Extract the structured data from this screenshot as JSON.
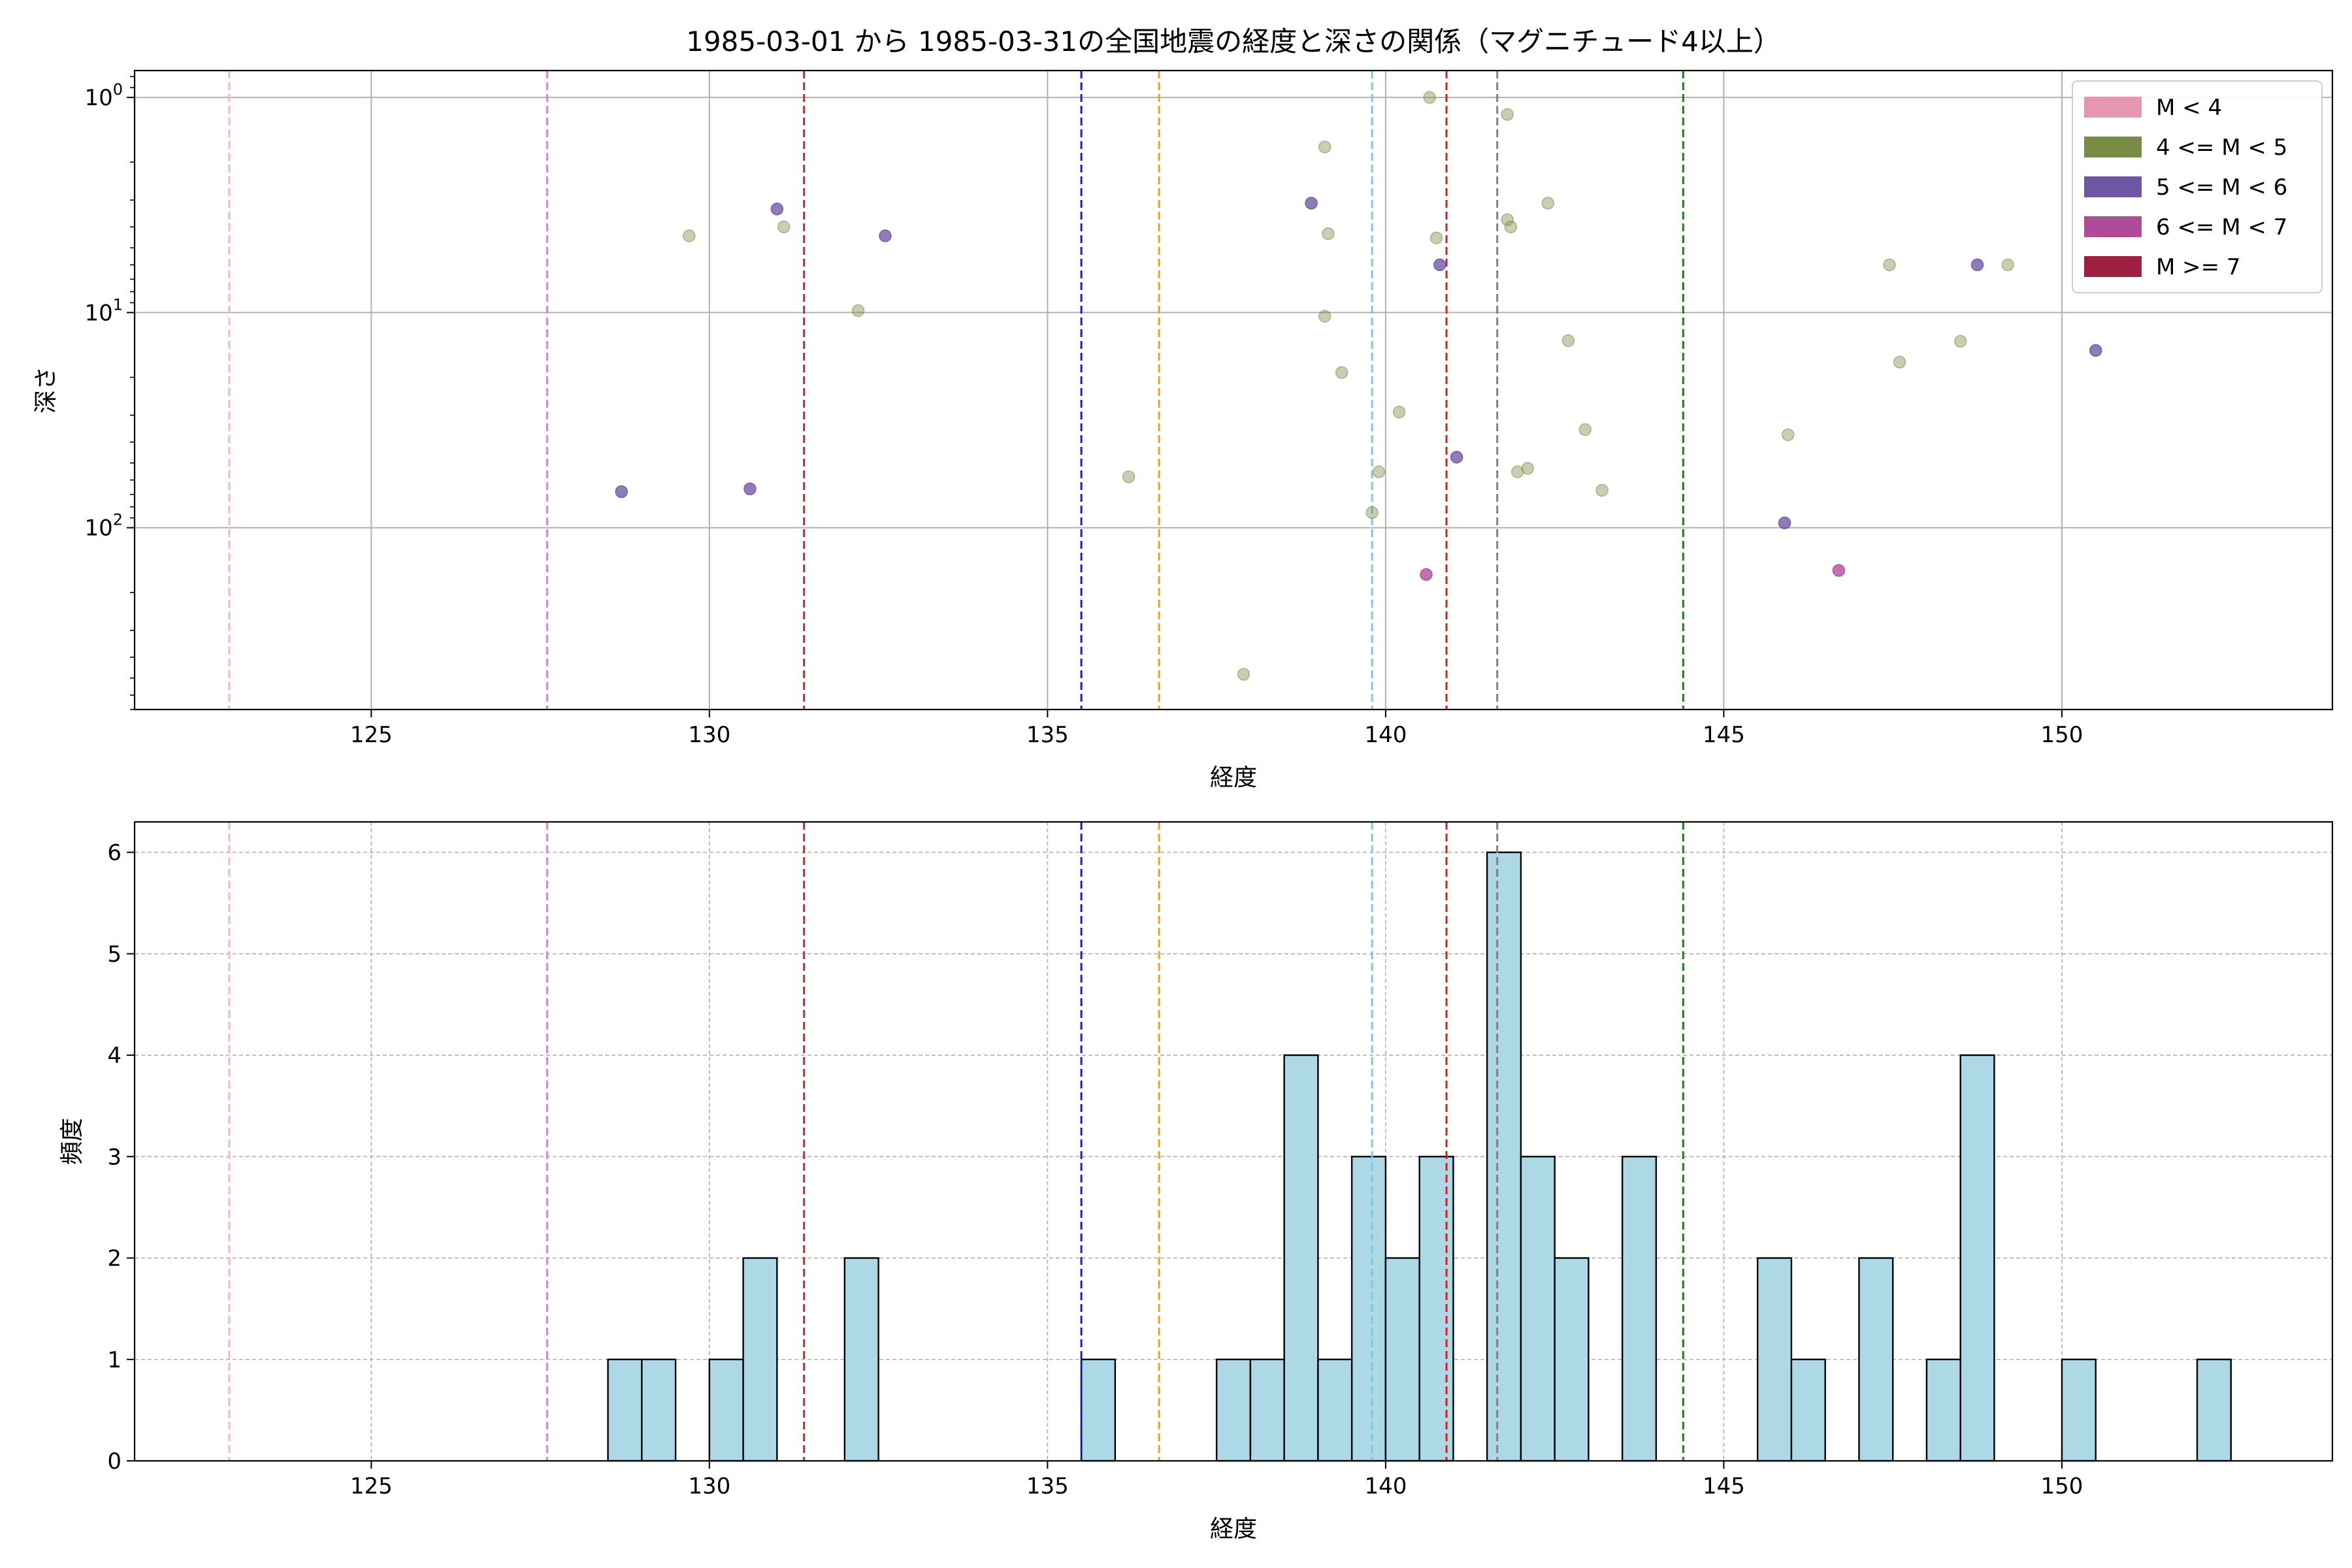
{
  "chart_data": [
    {
      "type": "scatter",
      "title": "1985-03-01 から 1985-03-31の全国地震の経度と深さの関係（マグニチュード4以上）",
      "xlabel": "経度",
      "ylabel": "深さ",
      "xlim": [
        121.5,
        154
      ],
      "ylim": [
        700,
        0.75
      ],
      "yscale": "log",
      "y_inverted": true,
      "x_ticks": [
        125,
        130,
        135,
        140,
        145,
        150
      ],
      "y_ticks": [
        {
          "value": 1,
          "base": "10",
          "exp": "0"
        },
        {
          "value": 10,
          "base": "10",
          "exp": "1"
        },
        {
          "value": 100,
          "base": "10",
          "exp": "2"
        }
      ],
      "grid": true,
      "legend": {
        "position": "top-right",
        "entries": [
          {
            "label": "M < 4",
            "color": "#e597b0"
          },
          {
            "label": "4 <= M < 5",
            "color": "#7a8b45"
          },
          {
            "label": "5 <= M < 6",
            "color": "#6e56a3"
          },
          {
            "label": "6 <= M < 7",
            "color": "#b04b9a"
          },
          {
            "label": "M >= 7",
            "color": "#9f2040"
          }
        ]
      },
      "series": [
        {
          "name": "4 <= M < 5",
          "color": "#7a8b45",
          "points": [
            [
              129.7,
              4.4
            ],
            [
              131.1,
              4.0
            ],
            [
              132.2,
              9.8
            ],
            [
              136.2,
              58
            ],
            [
              137.9,
              480
            ],
            [
              139.1,
              1.7
            ],
            [
              139.15,
              4.3
            ],
            [
              139.1,
              10.4
            ],
            [
              139.35,
              19
            ],
            [
              139.8,
              85
            ],
            [
              139.9,
              55
            ],
            [
              140.2,
              29
            ],
            [
              140.65,
              1.0
            ],
            [
              140.75,
              4.5
            ],
            [
              141.8,
              1.2
            ],
            [
              141.8,
              3.7
            ],
            [
              141.85,
              4.0
            ],
            [
              141.95,
              55
            ],
            [
              142.1,
              53
            ],
            [
              142.4,
              3.1
            ],
            [
              142.7,
              13.5
            ],
            [
              142.95,
              35
            ],
            [
              143.2,
              67
            ],
            [
              145.95,
              37
            ],
            [
              147.45,
              6.0
            ],
            [
              147.6,
              17
            ],
            [
              148.5,
              13.6
            ],
            [
              149.2,
              6.0
            ]
          ]
        },
        {
          "name": "5 <= M < 6",
          "color": "#6e56a3",
          "points": [
            [
              128.7,
              68
            ],
            [
              130.6,
              66
            ],
            [
              131.0,
              3.3
            ],
            [
              132.6,
              4.4
            ],
            [
              138.9,
              3.1
            ],
            [
              140.8,
              6.0
            ],
            [
              141.05,
              47
            ],
            [
              145.9,
              95
            ],
            [
              148.75,
              6.0
            ],
            [
              150.5,
              15
            ]
          ]
        },
        {
          "name": "6 <= M < 7",
          "color": "#b04b9a",
          "points": [
            [
              140.6,
              165
            ],
            [
              146.7,
              158
            ]
          ]
        }
      ],
      "reference_lines": [
        {
          "x": 122.9,
          "color": "#f5b6c8"
        },
        {
          "x": 127.6,
          "color": "#e07ee0"
        },
        {
          "x": 131.4,
          "color": "#b03030"
        },
        {
          "x": 135.5,
          "color": "#1a1aca"
        },
        {
          "x": 136.65,
          "color": "#f0a020"
        },
        {
          "x": 139.8,
          "color": "#7ec8dc"
        },
        {
          "x": 140.9,
          "color": "#e81818"
        },
        {
          "x": 141.65,
          "color": "#808080"
        },
        {
          "x": 144.4,
          "color": "#188018"
        }
      ]
    },
    {
      "type": "bar",
      "xlabel": "経度",
      "ylabel": "頻度",
      "xlim": [
        121.5,
        154
      ],
      "ylim": [
        0,
        6.3
      ],
      "x_ticks": [
        125,
        130,
        135,
        140,
        145,
        150
      ],
      "y_ticks": [
        0,
        1,
        2,
        3,
        4,
        5,
        6
      ],
      "grid": true,
      "bar_color": "#add8e6",
      "bin_width": 0.5,
      "bins": [
        [
          128.75,
          1
        ],
        [
          129.25,
          1
        ],
        [
          130.25,
          1
        ],
        [
          130.75,
          2
        ],
        [
          132.25,
          2
        ],
        [
          135.75,
          1
        ],
        [
          137.75,
          1
        ],
        [
          138.25,
          1
        ],
        [
          138.75,
          4
        ],
        [
          139.25,
          1
        ],
        [
          139.75,
          3
        ],
        [
          140.25,
          2
        ],
        [
          140.75,
          3
        ],
        [
          141.75,
          6
        ],
        [
          142.25,
          3
        ],
        [
          142.75,
          2
        ],
        [
          143.75,
          3
        ],
        [
          145.75,
          2
        ],
        [
          146.25,
          1
        ],
        [
          147.25,
          2
        ],
        [
          148.25,
          1
        ],
        [
          148.75,
          4
        ],
        [
          150.25,
          1
        ],
        [
          152.25,
          1
        ]
      ],
      "reference_lines": [
        {
          "x": 122.9,
          "color": "#f5b6c8"
        },
        {
          "x": 127.6,
          "color": "#e07ee0"
        },
        {
          "x": 131.4,
          "color": "#b03030"
        },
        {
          "x": 135.5,
          "color": "#1a1aca"
        },
        {
          "x": 136.65,
          "color": "#f0a020"
        },
        {
          "x": 139.8,
          "color": "#7ec8dc"
        },
        {
          "x": 140.9,
          "color": "#e81818"
        },
        {
          "x": 141.65,
          "color": "#808080"
        },
        {
          "x": 144.4,
          "color": "#188018"
        }
      ]
    }
  ]
}
